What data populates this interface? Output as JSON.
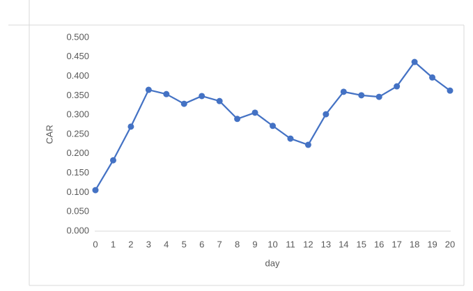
{
  "chart_data": {
    "type": "line",
    "x_label": "day",
    "y_label": "CAR",
    "categories": [
      "0",
      "1",
      "2",
      "3",
      "4",
      "5",
      "6",
      "7",
      "8",
      "9",
      "10",
      "11",
      "12",
      "13",
      "14",
      "15",
      "16",
      "17",
      "18",
      "19",
      "20"
    ],
    "series": [
      {
        "name": "CAR",
        "color": "#4472c4",
        "values": [
          0.106,
          0.183,
          0.27,
          0.365,
          0.354,
          0.329,
          0.349,
          0.336,
          0.29,
          0.306,
          0.272,
          0.239,
          0.223,
          0.302,
          0.36,
          0.351,
          0.347,
          0.374,
          0.437,
          0.397,
          0.363
        ]
      }
    ],
    "ylim": [
      0,
      0.5
    ],
    "yticks": [
      {
        "value": 0,
        "label": "0.000"
      },
      {
        "value": 0.05,
        "label": "0.050"
      },
      {
        "value": 0.1,
        "label": "0.100"
      },
      {
        "value": 0.15,
        "label": "0.150"
      },
      {
        "value": 0.2,
        "label": "0.200"
      },
      {
        "value": 0.25,
        "label": "0.250"
      },
      {
        "value": 0.3,
        "label": "0.300"
      },
      {
        "value": 0.35,
        "label": "0.350"
      },
      {
        "value": 0.4,
        "label": "0.400"
      },
      {
        "value": 0.45,
        "label": "0.450"
      },
      {
        "value": 0.5,
        "label": "0.500"
      }
    ],
    "grid": false
  }
}
